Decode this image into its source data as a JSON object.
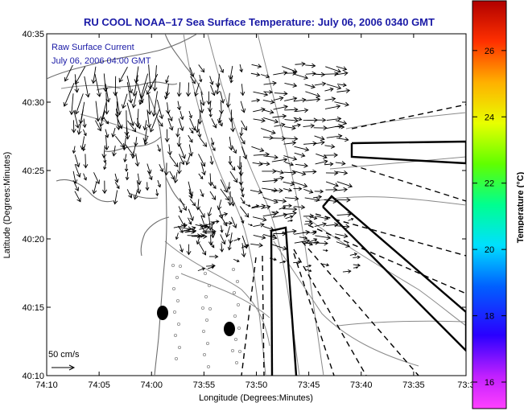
{
  "chart_data": {
    "type": "vector-map",
    "title": "RU COOL  NOAA–17  Sea Surface Temperature:  July 06, 2006 0340 GMT",
    "xlabel": "Longitude (Degrees:Minutes)",
    "ylabel": "Latitude (Degrees:Minutes)",
    "x_ticks": [
      "74:10",
      "74:05",
      "74:00",
      "73:55",
      "73:50",
      "73:45",
      "73:40",
      "73:35",
      "73:3"
    ],
    "y_ticks": [
      "40:10",
      "40:15",
      "40:20",
      "40:25",
      "40:30",
      "40:35"
    ],
    "annotations": [
      "Raw Surface Current",
      "July 06, 2006 04:00 GMT"
    ],
    "scale_label": "50 cm/s",
    "colorbar": {
      "label": "Temperature (°C)",
      "ticks": [
        "16",
        "18",
        "20",
        "22",
        "24",
        "26"
      ],
      "range": [
        15.2,
        27.5
      ]
    },
    "background": "white",
    "vector_color": "#000000",
    "contour_color": "#8a8a8a"
  }
}
